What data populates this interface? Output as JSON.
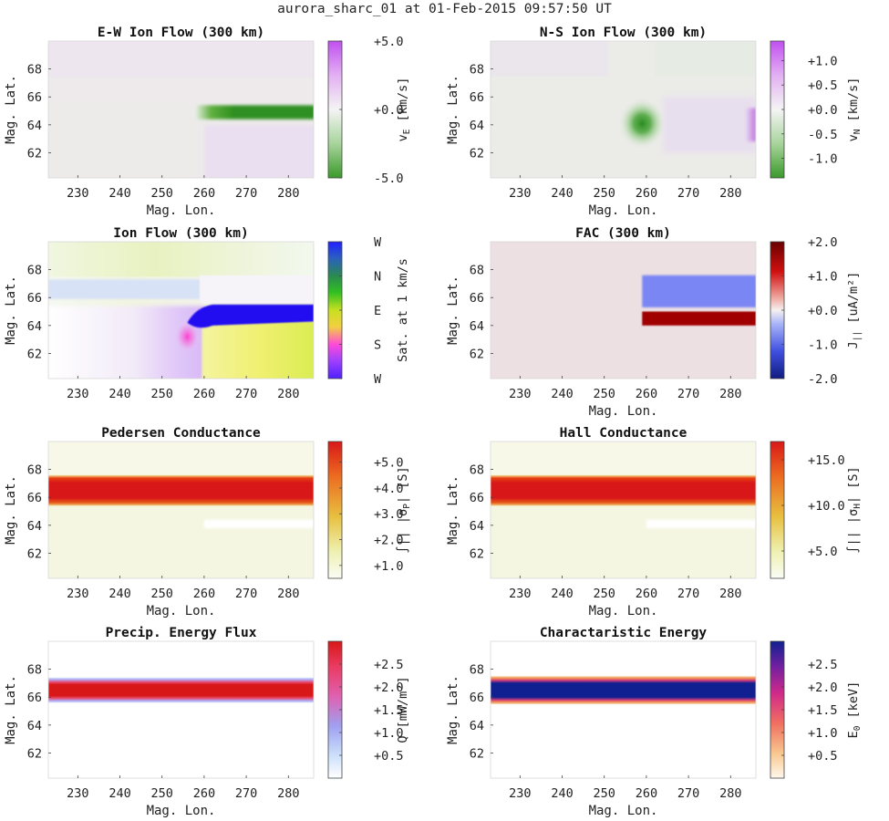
{
  "figure": {
    "title": "aurora_sharc_01 at 01-Feb-2015 09:57:50 UT"
  },
  "colors": {
    "green_neg": "#3a9a2a",
    "purple_pos": "#c060e0",
    "neutral": "#e9e9e7",
    "fac_up": "#7a86f4",
    "fac_down": "#a00000",
    "fac_bg": "#ece0e2",
    "conductance_band": "#d82020",
    "conductance_bg": "#f7f8e8",
    "char_energy_band": "#1028b0"
  },
  "chart_data": [
    {
      "id": "ew-ion-flow",
      "type": "heatmap",
      "title": "E-W Ion Flow (300 km)",
      "xlabel": "Mag. Lon.",
      "ylabel": "Mag. Lat.",
      "xlim": [
        223,
        286
      ],
      "ylim": [
        60.2,
        70
      ],
      "xticks": [
        230,
        240,
        250,
        260,
        270,
        280
      ],
      "yticks": [
        62,
        64,
        66,
        68
      ],
      "colorbar": {
        "label_main": "v",
        "label_sub": "E",
        "label_unit": " [km/s]",
        "range": [
          -5,
          5
        ],
        "ticks": [
          5,
          0,
          -5
        ],
        "ticklabels": [
          "+5.0",
          "+0.0",
          "-5.0"
        ],
        "colormap": "green-white-purple"
      },
      "features": [
        {
          "description": "eastward flow band",
          "lon": [
            258,
            286
          ],
          "lat": [
            64.4,
            65.4
          ],
          "value": -4.5
        },
        {
          "description": "weak positive region",
          "lon": [
            260,
            286
          ],
          "lat": [
            60.2,
            64.0
          ],
          "value": 1.0
        },
        {
          "description": "background",
          "lon": [
            223,
            286
          ],
          "lat": [
            65.5,
            70
          ],
          "value": 0.2
        }
      ]
    },
    {
      "id": "ns-ion-flow",
      "type": "heatmap",
      "title": "N-S Ion Flow (300 km)",
      "xlabel": "Mag. Lon.",
      "ylabel": "Mag. Lat.",
      "xlim": [
        223,
        286
      ],
      "ylim": [
        60.2,
        70
      ],
      "xticks": [
        230,
        240,
        250,
        260,
        270,
        280
      ],
      "yticks": [
        62,
        64,
        66,
        68
      ],
      "colorbar": {
        "label_main": "v",
        "label_sub": "N",
        "label_unit": " [km/s]",
        "range": [
          -1.4,
          1.4
        ],
        "ticks": [
          1.0,
          0.5,
          0.0,
          -0.5,
          -1.0
        ],
        "ticklabels": [
          "+1.0",
          "+0.5",
          "+0.0",
          "-0.5",
          "-1.0"
        ],
        "colormap": "green-white-purple"
      },
      "features": [
        {
          "description": "southward spot",
          "lon": [
            259,
            259
          ],
          "lat": [
            64.2,
            64.2
          ],
          "value": -1.3
        },
        {
          "description": "northward edge",
          "lon": [
            284,
            286
          ],
          "lat": [
            63.5,
            64.5
          ],
          "value": 1.0
        }
      ]
    },
    {
      "id": "ion-flow",
      "type": "heatmap",
      "title": "Ion Flow (300 km)",
      "xlabel": "",
      "ylabel": "Mag. Lat.",
      "xlim": [
        223,
        286
      ],
      "ylim": [
        60.2,
        70
      ],
      "xticks": [
        230,
        240,
        250,
        260,
        270,
        280
      ],
      "yticks": [
        62,
        64,
        66,
        68
      ],
      "colorbar": {
        "label_main": "Sat. at 1 km/s",
        "label_sub": "",
        "label_unit": "",
        "range": [
          0,
          4
        ],
        "ticks": [
          4,
          3,
          2,
          1,
          0
        ],
        "ticklabels": [
          "W",
          "N",
          "E",
          "S",
          "W"
        ],
        "colormap": "hue-direction"
      },
      "features": [
        {
          "description": "westward (blue) band",
          "lon": [
            258,
            286
          ],
          "lat": [
            64.4,
            65.4
          ]
        },
        {
          "description": "pale blue band",
          "lon": [
            223,
            258
          ],
          "lat": [
            65.8,
            67.2
          ]
        },
        {
          "description": "yellow region",
          "lon": [
            260,
            286
          ],
          "lat": [
            60.2,
            64.2
          ]
        }
      ]
    },
    {
      "id": "fac",
      "type": "heatmap",
      "title": "FAC (300 km)",
      "xlabel": "Mag. Lon.",
      "ylabel": "Mag. Lat.",
      "xlim": [
        223,
        286
      ],
      "ylim": [
        60.2,
        70
      ],
      "xticks": [
        230,
        240,
        250,
        260,
        270,
        280
      ],
      "yticks": [
        62,
        64,
        66,
        68
      ],
      "colorbar": {
        "label_main": "J",
        "label_sub": "||",
        "label_unit": " [uA/m²]",
        "range": [
          -2,
          2
        ],
        "ticks": [
          2,
          1,
          0,
          -1,
          -2
        ],
        "ticklabels": [
          "+2.0",
          "+1.0",
          "+0.0",
          "-1.0",
          "-2.0"
        ],
        "colormap": "blue-white-red"
      },
      "features": [
        {
          "description": "upward FAC region",
          "lon": [
            259,
            286
          ],
          "lat": [
            65.3,
            67.6
          ],
          "value": -1.0
        },
        {
          "description": "downward FAC region",
          "lon": [
            259,
            286
          ],
          "lat": [
            64.0,
            65.0
          ],
          "value": 2.2
        }
      ]
    },
    {
      "id": "pedersen",
      "type": "heatmap",
      "title": "Pedersen Conductance",
      "xlabel": "Mag. Lon.",
      "ylabel": "Mag. Lat.",
      "xlim": [
        223,
        286
      ],
      "ylim": [
        60.2,
        70
      ],
      "xticks": [
        230,
        240,
        250,
        260,
        270,
        280
      ],
      "yticks": [
        62,
        64,
        66,
        68
      ],
      "colorbar": {
        "label_main": "∫|| |σ",
        "label_sub": "P",
        "label_unit": "| [S]",
        "range": [
          0.5,
          5.8
        ],
        "ticks": [
          5,
          4,
          3,
          2,
          1
        ],
        "ticklabels": [
          "+5.0",
          "+4.0",
          "+3.0",
          "+2.0",
          "+1.0"
        ],
        "colormap": "white-yellow-red"
      },
      "features": [
        {
          "description": "conductance band",
          "lon": [
            223,
            286
          ],
          "lat": [
            65.6,
            67.4
          ],
          "value": 5.8
        }
      ]
    },
    {
      "id": "hall",
      "type": "heatmap",
      "title": "Hall Conductance",
      "xlabel": "Mag. Lon.",
      "ylabel": "Mag. Lat.",
      "xlim": [
        223,
        286
      ],
      "ylim": [
        60.2,
        70
      ],
      "xticks": [
        230,
        240,
        250,
        260,
        270,
        280
      ],
      "yticks": [
        62,
        64,
        66,
        68
      ],
      "colorbar": {
        "label_main": "∫|| |σ",
        "label_sub": "H",
        "label_unit": "| [S]",
        "range": [
          2,
          17
        ],
        "ticks": [
          15,
          10,
          5
        ],
        "ticklabels": [
          "+15.0",
          "+10.0",
          "+5.0"
        ],
        "colormap": "white-yellow-red"
      },
      "features": [
        {
          "description": "conductance band",
          "lon": [
            223,
            286
          ],
          "lat": [
            65.6,
            67.4
          ],
          "value": 17
        }
      ]
    },
    {
      "id": "precip-energy-flux",
      "type": "heatmap",
      "title": "Precip. Energy Flux",
      "xlabel": "Mag. Lon.",
      "ylabel": "Mag. Lat.",
      "xlim": [
        223,
        286
      ],
      "ylim": [
        60.2,
        70
      ],
      "xticks": [
        230,
        240,
        250,
        260,
        270,
        280
      ],
      "yticks": [
        62,
        64,
        66,
        68
      ],
      "colorbar": {
        "label_main": "Q",
        "label_sub": "",
        "label_unit": " [mW/m²]",
        "range": [
          0,
          3
        ],
        "ticks": [
          2.5,
          2.0,
          1.5,
          1.0,
          0.5
        ],
        "ticklabels": [
          "+2.5",
          "+2.0",
          "+1.5",
          "+1.0",
          "+0.5"
        ],
        "colormap": "white-blue-pink-red"
      },
      "features": [
        {
          "description": "precipitation band",
          "lon": [
            223,
            286
          ],
          "lat": [
            65.8,
            67.2
          ],
          "value": 3.0
        }
      ]
    },
    {
      "id": "characteristic-energy",
      "type": "heatmap",
      "title": "Charactaristic Energy",
      "xlabel": "Mag. Lon.",
      "ylabel": "Mag. Lat.",
      "xlim": [
        223,
        286
      ],
      "ylim": [
        60.2,
        70
      ],
      "xticks": [
        230,
        240,
        250,
        260,
        270,
        280
      ],
      "yticks": [
        62,
        64,
        66,
        68
      ],
      "colorbar": {
        "label_main": "E",
        "label_sub": "0",
        "label_unit": " [keV]",
        "range": [
          0,
          3
        ],
        "ticks": [
          2.5,
          2.0,
          1.5,
          1.0,
          0.5
        ],
        "ticklabels": [
          "+2.5",
          "+2.0",
          "+1.5",
          "+1.0",
          "+0.5"
        ],
        "colormap": "white-orange-purple-blue"
      },
      "features": [
        {
          "description": "energy band",
          "lon": [
            223,
            286
          ],
          "lat": [
            65.8,
            67.2
          ],
          "value": 3.0
        }
      ]
    }
  ]
}
